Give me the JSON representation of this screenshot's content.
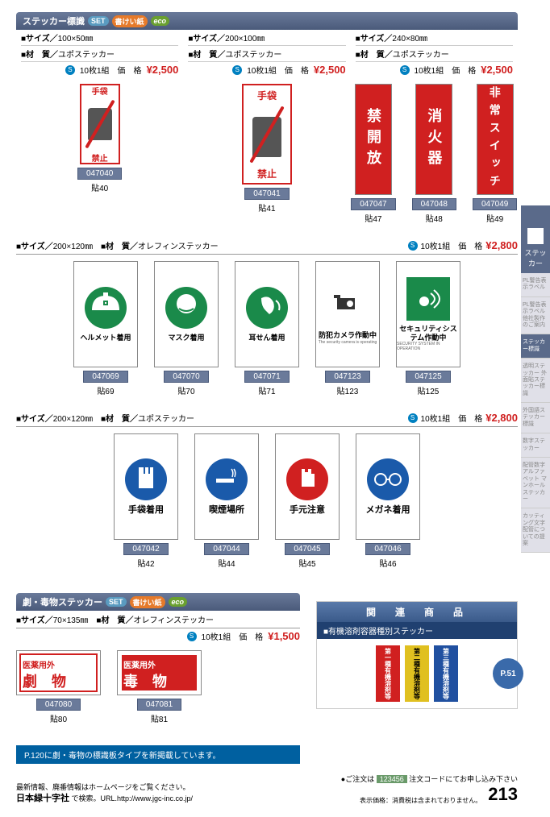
{
  "colors": {
    "header_grad_top": "#6a7a9a",
    "header_grad_bot": "#4a5a7a",
    "price": "#d02020",
    "blue": "#1a5aaa",
    "green": "#1a8a4a",
    "red": "#d02020",
    "code_bg": "#6a7a9a",
    "info_bar": "#0060a0"
  },
  "section1": {
    "title": "ステッカー標識",
    "badges": [
      "SET",
      "書けい紙",
      "eco"
    ],
    "cols": [
      {
        "size": "100×50㎜",
        "material": "ユポステッカー",
        "unit_note": "10枚1組　価　格",
        "price": "¥2,500"
      },
      {
        "size": "200×100㎜",
        "material": "ユポステッカー",
        "unit_note": "10枚1組　価　格",
        "price": "¥2,500"
      },
      {
        "size": "240×80㎜",
        "material": "ユポステッカー",
        "unit_note": "10枚1組　価　格",
        "price": "¥2,500"
      }
    ],
    "products_a": [
      {
        "code": "047040",
        "label": "貼40",
        "sign_top": "手袋",
        "sign_bot": "禁止"
      }
    ],
    "products_b": [
      {
        "code": "047041",
        "label": "貼41",
        "sign_top": "手袋",
        "sign_bot": "禁止"
      }
    ],
    "products_c": [
      {
        "code": "047047",
        "label": "貼47",
        "text": "禁開放"
      },
      {
        "code": "047048",
        "label": "貼48",
        "text": "消火器"
      },
      {
        "code": "047049",
        "label": "貼49",
        "text": "非常スイッチ"
      }
    ]
  },
  "section2": {
    "size": "200×120㎜",
    "material": "オレフィンステッカー",
    "unit_note": "10枚1組　価　格",
    "price": "¥2,800",
    "products": [
      {
        "code": "047069",
        "label": "貼69",
        "caption": "ヘルメット着用",
        "icon": "helmet",
        "scheme": "green"
      },
      {
        "code": "047070",
        "label": "貼70",
        "caption": "マスク着用",
        "icon": "mask",
        "scheme": "green"
      },
      {
        "code": "047071",
        "label": "貼71",
        "caption": "耳せん着用",
        "icon": "earplug",
        "scheme": "green"
      },
      {
        "code": "047123",
        "label": "貼123",
        "caption": "防犯カメラ作動中",
        "caption_sub": "The security camera is operating",
        "icon": "camera",
        "scheme": "red"
      },
      {
        "code": "047125",
        "label": "貼125",
        "caption": "セキュリティシステム作動中",
        "caption_sub": "SECURITY SYSTEM IN OPERATION",
        "icon": "security",
        "scheme": "green-fill"
      }
    ]
  },
  "section3": {
    "size": "200×120㎜",
    "material": "ユポステッカー",
    "unit_note": "10枚1組　価　格",
    "price": "¥2,800",
    "products": [
      {
        "code": "047042",
        "label": "貼42",
        "caption": "手袋着用",
        "icon": "gloves",
        "scheme": "blue"
      },
      {
        "code": "047044",
        "label": "貼44",
        "caption": "喫煙場所",
        "icon": "smoking",
        "scheme": "blue"
      },
      {
        "code": "047045",
        "label": "貼45",
        "caption": "手元注意",
        "icon": "hand",
        "scheme": "red"
      },
      {
        "code": "047046",
        "label": "貼46",
        "caption": "メガネ着用",
        "icon": "glasses",
        "scheme": "blue"
      }
    ]
  },
  "section4": {
    "title": "劇・毒物ステッカー",
    "badges": [
      "SET",
      "書けい紙",
      "eco"
    ],
    "size": "70×135㎜",
    "material": "オレフィンステッカー",
    "unit_note": "10枚1組　価　格",
    "price": "¥1,500",
    "products": [
      {
        "code": "047080",
        "label": "貼80",
        "line1": "医薬用外",
        "line2": "劇　物",
        "color": "#d02020"
      },
      {
        "code": "047081",
        "label": "貼81",
        "line1": "医薬用外",
        "line2": "毒　物",
        "color": "#d02020",
        "bg": "#d02020"
      }
    ]
  },
  "info_bar": "P.120に劇・毒物の標識板タイプを新掲載しています。",
  "related": {
    "header": "関　連　商　品",
    "sub": "■有機溶剤容器種別ステッカー",
    "page_link": "P.51",
    "solvents": [
      {
        "text": "第一種有機溶剤等",
        "bg": "#d02020"
      },
      {
        "text": "第二種有機溶剤等",
        "bg": "#e0c020",
        "fg": "#000"
      },
      {
        "text": "第三種有機溶剤等",
        "bg": "#2050a0"
      }
    ]
  },
  "side_tabs": {
    "main": "ステッカー",
    "items": [
      "PL警告表示ラベル",
      "PL警告表示ラベル 他社製作のご案内",
      "ステッカー標識",
      "透明ステッカー 外面貼ステッカー標識",
      "外国語ステッカー標識",
      "数字ステッカー",
      "配管数字アルファベット マンホールステッカー",
      "カッティング文字 配管についての提案"
    ],
    "active_index": 2
  },
  "footer": {
    "left1": "最新情報、廃番情報はホームページをご覧ください。",
    "left2": "日本緑十字社",
    "left3": " で検索。URL.http://www.jgc-inc.co.jp/",
    "right1": "●ご注文は ",
    "order_code": "123456",
    "right2": " 注文コードにてお申し込み下さい",
    "right3": "表示価格：消費税は含まれておりません。",
    "page": "213"
  }
}
